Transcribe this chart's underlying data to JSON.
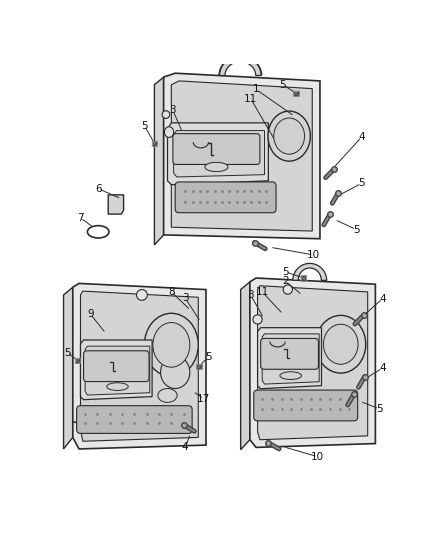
{
  "bg_color": "#ffffff",
  "lc": "#2a2a2a",
  "figsize": [
    4.38,
    5.33
  ],
  "dpi": 100,
  "panel_light": "#e8e8e8",
  "panel_mid": "#d4d4d4",
  "panel_dark": "#c0c0c0",
  "grille_color": "#b8b8b8",
  "white": "#ffffff"
}
